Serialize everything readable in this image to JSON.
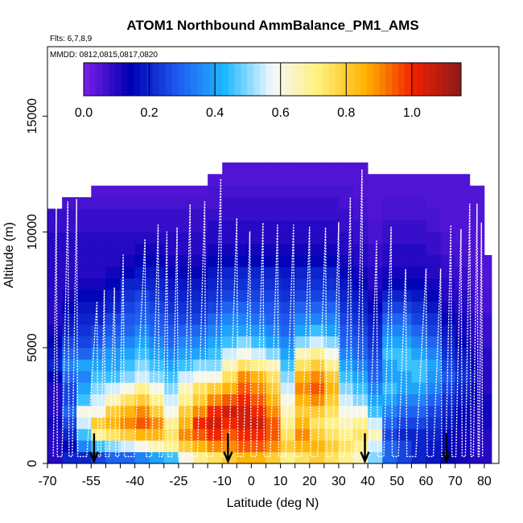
{
  "chart_data": {
    "type": "heatmap",
    "title": "ATOM1 Northbound AmmBalance_PM1_AMS",
    "subtitle_flights": "Flts: 6,7,8,9",
    "subtitle_dates": "MMDD: 0812,0815,0817,0820",
    "xlabel": "Latitude (deg N)",
    "ylabel": "Altitude (m)",
    "xlim": [
      -70,
      85
    ],
    "ylim": [
      0,
      18000
    ],
    "x_ticks_labeled": [
      -70,
      -55,
      -40,
      -25,
      -10,
      0,
      10,
      20,
      30,
      40,
      50,
      60,
      70,
      80
    ],
    "x_ticks_labels": [
      "-70",
      "-55",
      "-40",
      "-25",
      "-10",
      "0",
      "10",
      "20",
      "30",
      "40",
      "50",
      "60",
      "70",
      "80"
    ],
    "x_ticks_minor": [
      -65,
      -60,
      -50,
      -45,
      -35,
      -30,
      -20,
      -15,
      -5,
      5,
      15,
      25,
      35,
      45,
      55,
      65,
      75
    ],
    "y_ticks": [
      0,
      5000,
      10000,
      15000
    ],
    "y_ticks_labels": [
      "0",
      "5000",
      "10000",
      "15000"
    ],
    "colorbar": {
      "range": [
        0.0,
        1.15
      ],
      "ticks": [
        0.0,
        0.2,
        0.4,
        0.6,
        0.8,
        1.0
      ],
      "tick_labels": [
        "0.0",
        "0.2",
        "0.4",
        "0.6",
        "0.8",
        "1.0"
      ],
      "colors": [
        "#7b1fe6",
        "#0000b4",
        "#1f5cf0",
        "#1fb8ff",
        "#f4f8ff",
        "#fff07a",
        "#ffb000",
        "#f02000",
        "#8b1a1a"
      ]
    },
    "grid": false,
    "legend": "colorbar top, inside plot",
    "bin_height_m": 500,
    "columns": [
      {
        "lat": -67.5,
        "top": 11000,
        "values": [
          0.1,
          0.1,
          0.1,
          0.12,
          0.1,
          0.1,
          0.1,
          0.15,
          0.2,
          0.18,
          0.15,
          0.12,
          0.1,
          0.1,
          0.1,
          0.1,
          0.1,
          0.1,
          0.1,
          0.1,
          0.08,
          0.08
        ]
      },
      {
        "lat": -62.5,
        "top": 11500,
        "values": [
          0.2,
          0.15,
          0.2,
          0.25,
          0.3,
          0.25,
          0.25,
          0.3,
          0.35,
          0.3,
          0.25,
          0.2,
          0.18,
          0.15,
          0.12,
          0.1,
          0.1,
          0.1,
          0.1,
          0.1,
          0.08,
          0.08,
          0.06
        ]
      },
      {
        "lat": -57.5,
        "top": 11500,
        "values": [
          0.2,
          0.35,
          0.45,
          0.55,
          0.6,
          0.45,
          0.4,
          0.35,
          0.4,
          0.3,
          0.25,
          0.22,
          0.2,
          0.18,
          0.15,
          0.12,
          0.1,
          0.1,
          0.1,
          0.1,
          0.08,
          0.08,
          0.06
        ]
      },
      {
        "lat": -52.5,
        "top": 12000,
        "values": [
          0.25,
          0.45,
          0.7,
          0.8,
          0.6,
          0.55,
          0.5,
          0.45,
          0.4,
          0.35,
          0.28,
          0.25,
          0.2,
          0.18,
          0.15,
          0.12,
          0.1,
          0.1,
          0.1,
          0.1,
          0.08,
          0.08,
          0.06,
          0.05
        ]
      },
      {
        "lat": -47.5,
        "top": 12000,
        "values": [
          0.3,
          0.5,
          0.75,
          0.85,
          0.8,
          0.65,
          0.55,
          0.45,
          0.4,
          0.38,
          0.32,
          0.28,
          0.25,
          0.2,
          0.18,
          0.15,
          0.12,
          0.1,
          0.1,
          0.1,
          0.08,
          0.08,
          0.06,
          0.05
        ]
      },
      {
        "lat": -42.5,
        "top": 12000,
        "values": [
          0.3,
          0.55,
          0.8,
          0.9,
          0.85,
          0.75,
          0.6,
          0.5,
          0.45,
          0.4,
          0.35,
          0.3,
          0.28,
          0.25,
          0.22,
          0.2,
          0.15,
          0.12,
          0.1,
          0.1,
          0.08,
          0.08,
          0.06,
          0.05
        ]
      },
      {
        "lat": -37.5,
        "top": 12000,
        "values": [
          0.35,
          0.6,
          0.85,
          0.95,
          0.9,
          0.8,
          0.7,
          0.55,
          0.5,
          0.45,
          0.4,
          0.35,
          0.3,
          0.28,
          0.25,
          0.2,
          0.18,
          0.15,
          0.12,
          0.1,
          0.08,
          0.08,
          0.06,
          0.05
        ]
      },
      {
        "lat": -32.5,
        "top": 12000,
        "values": [
          0.4,
          0.65,
          0.85,
          0.9,
          0.8,
          0.7,
          0.6,
          0.5,
          0.45,
          0.4,
          0.35,
          0.3,
          0.28,
          0.25,
          0.22,
          0.2,
          0.18,
          0.15,
          0.12,
          0.1,
          0.08,
          0.08,
          0.06,
          0.05
        ]
      },
      {
        "lat": -27.5,
        "top": 12000,
        "values": [
          0.45,
          0.7,
          0.75,
          0.7,
          0.6,
          0.55,
          0.5,
          0.45,
          0.4,
          0.35,
          0.3,
          0.28,
          0.25,
          0.22,
          0.2,
          0.18,
          0.15,
          0.12,
          0.1,
          0.1,
          0.08,
          0.08,
          0.06,
          0.05
        ]
      },
      {
        "lat": -22.5,
        "top": 12000,
        "values": [
          0.6,
          0.8,
          0.9,
          0.85,
          0.8,
          0.7,
          0.65,
          0.55,
          0.45,
          0.4,
          0.35,
          0.3,
          0.25,
          0.22,
          0.2,
          0.18,
          0.15,
          0.12,
          0.1,
          0.1,
          0.08,
          0.08,
          0.06,
          0.05
        ]
      },
      {
        "lat": -17.5,
        "top": 12000,
        "values": [
          0.7,
          0.85,
          0.95,
          1.0,
          0.9,
          0.8,
          0.75,
          0.6,
          0.5,
          0.4,
          0.35,
          0.3,
          0.25,
          0.22,
          0.2,
          0.18,
          0.15,
          0.12,
          0.1,
          0.1,
          0.08,
          0.08,
          0.06,
          0.05
        ]
      },
      {
        "lat": -12.5,
        "top": 12500,
        "values": [
          0.75,
          0.9,
          1.0,
          1.05,
          1.0,
          0.9,
          0.8,
          0.6,
          0.5,
          0.45,
          0.4,
          0.35,
          0.3,
          0.25,
          0.22,
          0.2,
          0.18,
          0.15,
          0.12,
          0.1,
          0.1,
          0.08,
          0.06,
          0.06,
          0.05
        ]
      },
      {
        "lat": -7.5,
        "top": 13000,
        "values": [
          0.8,
          0.9,
          0.95,
          1.0,
          1.05,
          0.95,
          0.85,
          0.75,
          0.65,
          0.55,
          0.45,
          0.4,
          0.35,
          0.3,
          0.25,
          0.22,
          0.2,
          0.15,
          0.12,
          0.1,
          0.1,
          0.08,
          0.08,
          0.06,
          0.05,
          0.05
        ]
      },
      {
        "lat": -2.5,
        "top": 13000,
        "values": [
          0.85,
          0.95,
          1.0,
          1.05,
          1.05,
          1.0,
          0.95,
          0.9,
          0.75,
          0.6,
          0.5,
          0.4,
          0.35,
          0.3,
          0.25,
          0.22,
          0.2,
          0.15,
          0.12,
          0.1,
          0.1,
          0.08,
          0.08,
          0.06,
          0.05,
          0.05
        ]
      },
      {
        "lat": 2.5,
        "top": 13000,
        "values": [
          0.85,
          0.95,
          1.0,
          1.05,
          1.0,
          0.95,
          0.9,
          0.85,
          0.7,
          0.55,
          0.45,
          0.38,
          0.32,
          0.28,
          0.25,
          0.22,
          0.2,
          0.15,
          0.12,
          0.1,
          0.1,
          0.08,
          0.08,
          0.06,
          0.05,
          0.05
        ]
      },
      {
        "lat": 7.5,
        "top": 13000,
        "values": [
          0.8,
          0.9,
          0.95,
          0.95,
          0.9,
          0.85,
          0.8,
          0.75,
          0.65,
          0.5,
          0.4,
          0.35,
          0.3,
          0.28,
          0.25,
          0.22,
          0.2,
          0.15,
          0.12,
          0.1,
          0.1,
          0.08,
          0.08,
          0.06,
          0.05,
          0.05
        ]
      },
      {
        "lat": 12.5,
        "top": 13000,
        "values": [
          0.7,
          0.8,
          0.75,
          0.7,
          0.65,
          0.6,
          0.55,
          0.5,
          0.45,
          0.4,
          0.35,
          0.3,
          0.28,
          0.25,
          0.22,
          0.2,
          0.18,
          0.15,
          0.12,
          0.1,
          0.1,
          0.08,
          0.08,
          0.06,
          0.05,
          0.05
        ]
      },
      {
        "lat": 17.5,
        "top": 13000,
        "values": [
          0.75,
          0.85,
          0.9,
          0.85,
          0.8,
          0.85,
          0.9,
          0.85,
          0.75,
          0.65,
          0.5,
          0.4,
          0.35,
          0.3,
          0.25,
          0.22,
          0.2,
          0.15,
          0.12,
          0.1,
          0.1,
          0.08,
          0.08,
          0.06,
          0.05,
          0.05
        ]
      },
      {
        "lat": 22.5,
        "top": 13000,
        "values": [
          0.8,
          0.85,
          0.8,
          0.75,
          0.8,
          0.9,
          0.95,
          0.9,
          0.8,
          0.7,
          0.55,
          0.45,
          0.35,
          0.3,
          0.25,
          0.22,
          0.2,
          0.15,
          0.12,
          0.1,
          0.1,
          0.08,
          0.08,
          0.06,
          0.05,
          0.05
        ]
      },
      {
        "lat": 27.5,
        "top": 13000,
        "values": [
          0.75,
          0.8,
          0.75,
          0.7,
          0.75,
          0.8,
          0.85,
          0.8,
          0.7,
          0.6,
          0.5,
          0.4,
          0.35,
          0.3,
          0.25,
          0.22,
          0.2,
          0.15,
          0.12,
          0.1,
          0.1,
          0.08,
          0.08,
          0.06,
          0.05,
          0.05
        ]
      },
      {
        "lat": 32.5,
        "top": 13000,
        "values": [
          0.7,
          0.75,
          0.7,
          0.65,
          0.6,
          0.55,
          0.5,
          0.45,
          0.4,
          0.35,
          0.3,
          0.28,
          0.25,
          0.22,
          0.2,
          0.18,
          0.15,
          0.12,
          0.1,
          0.1,
          0.08,
          0.08,
          0.06,
          0.06,
          0.05,
          0.05
        ]
      },
      {
        "lat": 37.5,
        "top": 13000,
        "values": [
          0.65,
          0.7,
          0.75,
          0.7,
          0.6,
          0.5,
          0.45,
          0.4,
          0.35,
          0.3,
          0.28,
          0.25,
          0.22,
          0.2,
          0.18,
          0.15,
          0.12,
          0.1,
          0.1,
          0.08,
          0.08,
          0.06,
          0.06,
          0.05,
          0.05,
          0.05
        ]
      },
      {
        "lat": 42.5,
        "top": 12500,
        "values": [
          0.5,
          0.55,
          0.65,
          0.55,
          0.45,
          0.4,
          0.35,
          0.3,
          0.28,
          0.25,
          0.22,
          0.2,
          0.18,
          0.15,
          0.12,
          0.1,
          0.1,
          0.08,
          0.08,
          0.06,
          0.06,
          0.05,
          0.05,
          0.05,
          0.05
        ]
      },
      {
        "lat": 47.5,
        "top": 12500,
        "values": [
          0.3,
          0.3,
          0.25,
          0.3,
          0.35,
          0.4,
          0.45,
          0.4,
          0.4,
          0.45,
          0.4,
          0.35,
          0.3,
          0.25,
          0.2,
          0.15,
          0.12,
          0.1,
          0.1,
          0.08,
          0.08,
          0.06,
          0.06,
          0.05,
          0.05
        ]
      },
      {
        "lat": 52.5,
        "top": 12500,
        "values": [
          0.25,
          0.25,
          0.2,
          0.25,
          0.3,
          0.35,
          0.4,
          0.4,
          0.45,
          0.45,
          0.4,
          0.35,
          0.3,
          0.25,
          0.2,
          0.15,
          0.12,
          0.1,
          0.1,
          0.08,
          0.08,
          0.06,
          0.06,
          0.05,
          0.05
        ]
      },
      {
        "lat": 57.5,
        "top": 12500,
        "values": [
          0.2,
          0.2,
          0.2,
          0.25,
          0.3,
          0.35,
          0.4,
          0.45,
          0.45,
          0.4,
          0.35,
          0.3,
          0.25,
          0.22,
          0.18,
          0.15,
          0.12,
          0.1,
          0.1,
          0.08,
          0.08,
          0.06,
          0.06,
          0.05,
          0.05
        ]
      },
      {
        "lat": 62.5,
        "top": 12500,
        "values": [
          0.18,
          0.18,
          0.2,
          0.22,
          0.25,
          0.3,
          0.35,
          0.38,
          0.4,
          0.35,
          0.3,
          0.25,
          0.22,
          0.18,
          0.15,
          0.12,
          0.1,
          0.1,
          0.08,
          0.08,
          0.06,
          0.06,
          0.05,
          0.05,
          0.05
        ]
      },
      {
        "lat": 67.5,
        "top": 12500,
        "values": [
          0.15,
          0.15,
          0.15,
          0.18,
          0.2,
          0.22,
          0.25,
          0.28,
          0.25,
          0.22,
          0.2,
          0.18,
          0.15,
          0.12,
          0.1,
          0.1,
          0.08,
          0.08,
          0.06,
          0.06,
          0.05,
          0.05,
          0.05,
          0.05,
          0.05
        ]
      },
      {
        "lat": 72.5,
        "top": 12500,
        "values": [
          0.12,
          0.12,
          0.12,
          0.15,
          0.15,
          0.18,
          0.2,
          0.22,
          0.2,
          0.18,
          0.15,
          0.12,
          0.12,
          0.1,
          0.1,
          0.08,
          0.08,
          0.06,
          0.06,
          0.05,
          0.05,
          0.05,
          0.05,
          0.05,
          0.05
        ]
      },
      {
        "lat": 77.5,
        "top": 12000,
        "values": [
          0.1,
          0.1,
          0.1,
          0.12,
          0.12,
          0.15,
          0.15,
          0.18,
          0.15,
          0.12,
          0.1,
          0.1,
          0.1,
          0.08,
          0.08,
          0.06,
          0.06,
          0.05,
          0.05,
          0.05,
          0.05,
          0.05,
          0.05,
          0.05
        ]
      },
      {
        "lat": 80.0,
        "top": 9000,
        "values": [
          0.1,
          0.1,
          0.1,
          0.12,
          0.12,
          0.12,
          0.1,
          0.1,
          0.1,
          0.1,
          0.08,
          0.08,
          0.08,
          0.06,
          0.06,
          0.05,
          0.05,
          0.05
        ]
      }
    ],
    "flight_track_peaks": [
      {
        "lat": -67.0,
        "alt": 11000
      },
      {
        "lat": -63.0,
        "alt": 11300
      },
      {
        "lat": -60.0,
        "alt": 11400
      },
      {
        "lat": -53.0,
        "alt": 7000
      },
      {
        "lat": -50.5,
        "alt": 7500
      },
      {
        "lat": -47.0,
        "alt": 7600
      },
      {
        "lat": -44.0,
        "alt": 9000
      },
      {
        "lat": -36.5,
        "alt": 9700
      },
      {
        "lat": -32.0,
        "alt": 10300
      },
      {
        "lat": -29.0,
        "alt": 10000
      },
      {
        "lat": -25.5,
        "alt": 10200
      },
      {
        "lat": -21.0,
        "alt": 11200
      },
      {
        "lat": -16.0,
        "alt": 11300
      },
      {
        "lat": -10.5,
        "alt": 12300
      },
      {
        "lat": -5.0,
        "alt": 10600
      },
      {
        "lat": -0.5,
        "alt": 10000
      },
      {
        "lat": 4.0,
        "alt": 10400
      },
      {
        "lat": 9.0,
        "alt": 10300
      },
      {
        "lat": 14.5,
        "alt": 10300
      },
      {
        "lat": 20.0,
        "alt": 10200
      },
      {
        "lat": 25.5,
        "alt": 10200
      },
      {
        "lat": 30.0,
        "alt": 10400
      },
      {
        "lat": 34.0,
        "alt": 11500
      },
      {
        "lat": 38.0,
        "alt": 12700
      },
      {
        "lat": 43.0,
        "alt": 9600
      },
      {
        "lat": 48.0,
        "alt": 10200
      },
      {
        "lat": 53.0,
        "alt": 8400
      },
      {
        "lat": 60.0,
        "alt": 8400
      },
      {
        "lat": 65.0,
        "alt": 8400
      },
      {
        "lat": 68.5,
        "alt": 10300
      },
      {
        "lat": 72.0,
        "alt": 10100
      },
      {
        "lat": 75.0,
        "alt": 11200
      },
      {
        "lat": 77.5,
        "alt": 11200
      },
      {
        "lat": 79.0,
        "alt": 10400
      }
    ],
    "arrow_markers_lat": [
      -54,
      -8,
      39,
      67
    ]
  }
}
